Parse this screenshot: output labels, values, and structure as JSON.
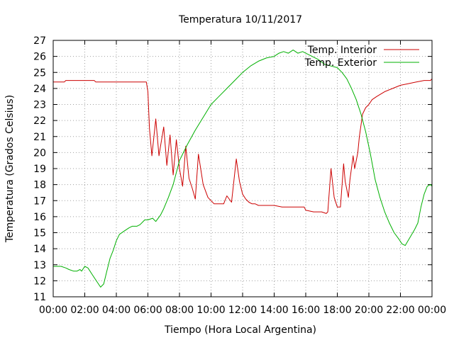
{
  "chart_data": {
    "type": "line",
    "title": "Temperatura 10/11/2017",
    "xlabel": "Tiempo (Hora Local Argentina)",
    "ylabel": "Temperatura (Grados Celsius)",
    "x_unit": "hour of day",
    "xlim": [
      0,
      24
    ],
    "ylim": [
      11,
      27
    ],
    "x_ticks": [
      0,
      2,
      4,
      6,
      8,
      10,
      12,
      14,
      16,
      18,
      20,
      22,
      24
    ],
    "x_tick_labels": [
      "00:00",
      "02:00",
      "04:00",
      "06:00",
      "08:00",
      "10:00",
      "12:00",
      "14:00",
      "16:00",
      "18:00",
      "20:00",
      "22:00",
      "00:00"
    ],
    "y_ticks": [
      11,
      12,
      13,
      14,
      15,
      16,
      17,
      18,
      19,
      20,
      21,
      22,
      23,
      24,
      25,
      26,
      27
    ],
    "grid": true,
    "legend_position": "top-right",
    "series": [
      {
        "name": "Temp. Interior",
        "color": "#cc0000",
        "x": [
          0,
          0.7,
          0.8,
          2.6,
          2.7,
          5.9,
          6.0,
          6.1,
          6.25,
          6.5,
          6.7,
          6.8,
          7.0,
          7.2,
          7.4,
          7.6,
          7.8,
          8.0,
          8.2,
          8.4,
          8.6,
          8.8,
          9.0,
          9.2,
          9.5,
          9.8,
          10.0,
          10.2,
          10.5,
          10.8,
          11.0,
          11.3,
          11.6,
          11.8,
          12.0,
          12.2,
          12.4,
          12.6,
          12.8,
          13.0,
          13.3,
          13.6,
          14.0,
          14.5,
          15.0,
          15.5,
          15.9,
          16.0,
          16.5,
          17.0,
          17.3,
          17.4,
          17.6,
          17.8,
          18.0,
          18.2,
          18.4,
          18.5,
          18.7,
          18.8,
          19.0,
          19.1,
          19.3,
          19.4,
          19.6,
          19.8,
          20.0,
          20.2,
          20.5,
          21.0,
          21.5,
          22.0,
          22.5,
          23.0,
          23.5,
          23.9,
          24.0
        ],
        "values": [
          24.4,
          24.4,
          24.5,
          24.5,
          24.4,
          24.4,
          23.8,
          21.5,
          19.8,
          22.1,
          19.8,
          20.4,
          21.6,
          19.2,
          21.1,
          18.6,
          20.8,
          19.0,
          17.9,
          20.4,
          18.4,
          17.8,
          17.1,
          19.9,
          18.0,
          17.2,
          17.0,
          16.8,
          16.8,
          16.8,
          17.3,
          16.9,
          19.6,
          18.2,
          17.4,
          17.1,
          16.9,
          16.8,
          16.8,
          16.7,
          16.7,
          16.7,
          16.7,
          16.6,
          16.6,
          16.6,
          16.6,
          16.4,
          16.3,
          16.3,
          16.2,
          16.3,
          19.0,
          17.2,
          16.6,
          16.6,
          19.3,
          18.2,
          17.2,
          18.3,
          19.8,
          19.0,
          20.0,
          21.0,
          22.4,
          22.8,
          23.0,
          23.3,
          23.5,
          23.8,
          24.0,
          24.2,
          24.3,
          24.4,
          24.5,
          24.5,
          24.6
        ]
      },
      {
        "name": "Temp. Exterior",
        "color": "#00b000",
        "x": [
          0,
          0.5,
          0.8,
          1.0,
          1.3,
          1.5,
          1.7,
          1.8,
          2.0,
          2.2,
          2.4,
          2.6,
          2.8,
          3.0,
          3.2,
          3.4,
          3.6,
          3.8,
          4.0,
          4.2,
          4.5,
          4.8,
          5.0,
          5.3,
          5.5,
          5.8,
          6.0,
          6.3,
          6.5,
          6.8,
          7.0,
          7.3,
          7.6,
          8.0,
          8.5,
          9.0,
          9.5,
          10.0,
          10.5,
          11.0,
          11.5,
          12.0,
          12.5,
          13.0,
          13.5,
          14.0,
          14.3,
          14.6,
          14.9,
          15.2,
          15.5,
          15.8,
          16.0,
          16.4,
          16.8,
          17.2,
          17.6,
          18.0,
          18.3,
          18.6,
          18.9,
          19.2,
          19.5,
          19.8,
          20.1,
          20.4,
          20.7,
          21.0,
          21.3,
          21.6,
          21.9,
          22.1,
          22.3,
          22.6,
          22.9,
          23.1,
          23.3,
          23.5,
          23.7,
          23.9,
          24.0
        ],
        "values": [
          12.9,
          12.9,
          12.8,
          12.7,
          12.6,
          12.6,
          12.7,
          12.6,
          12.9,
          12.8,
          12.5,
          12.2,
          11.9,
          11.6,
          11.8,
          12.6,
          13.4,
          13.9,
          14.5,
          14.9,
          15.1,
          15.3,
          15.4,
          15.4,
          15.5,
          15.8,
          15.8,
          15.9,
          15.7,
          16.1,
          16.5,
          17.2,
          18.0,
          19.5,
          20.5,
          21.4,
          22.2,
          23.0,
          23.5,
          24.0,
          24.5,
          25.0,
          25.4,
          25.7,
          25.9,
          26.0,
          26.2,
          26.3,
          26.2,
          26.4,
          26.2,
          26.3,
          26.2,
          26.0,
          25.8,
          25.5,
          25.4,
          25.3,
          25.0,
          24.6,
          24.0,
          23.3,
          22.4,
          21.3,
          19.9,
          18.3,
          17.2,
          16.3,
          15.6,
          15.0,
          14.6,
          14.3,
          14.2,
          14.7,
          15.2,
          15.6,
          16.6,
          17.4,
          17.9,
          18.0,
          17.9
        ]
      }
    ]
  }
}
